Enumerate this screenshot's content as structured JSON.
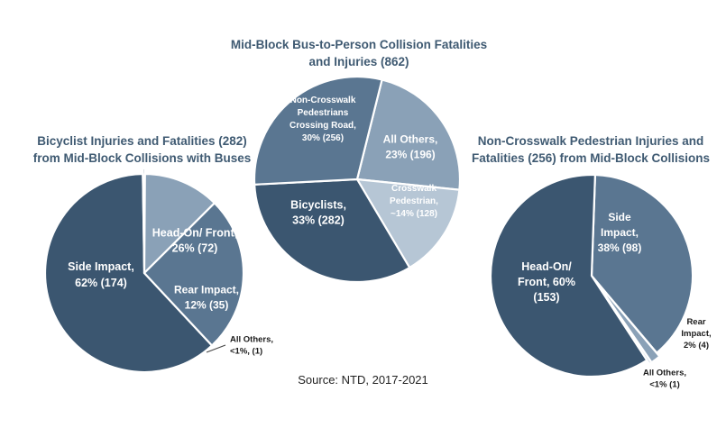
{
  "source": "Source: NTD, 2017-2021",
  "colors": {
    "dark": "#3b5670",
    "mid": "#5a7691",
    "light": "#8aa1b7",
    "lighter": "#b6c6d5",
    "title": "#3f5a72"
  },
  "chart_data": [
    {
      "type": "pie",
      "title_lines": [
        "Bicyclist Injuries and Fatalities (282)",
        "from Mid-Block Collisions with Buses"
      ],
      "slices": [
        {
          "label_lines": [
            "Side Impact,",
            "62% (174)"
          ],
          "value": 174,
          "percent": 62,
          "color": "dark"
        },
        {
          "label_lines": [
            "All Others,",
            "<1%, (1)"
          ],
          "value": 1,
          "percent": 1,
          "color": "dark"
        },
        {
          "label_lines": [
            "Rear Impact,",
            "12% (35)"
          ],
          "value": 35,
          "percent": 12,
          "color": "light"
        },
        {
          "label_lines": [
            "Head-On/ Front,",
            "26% (72)"
          ],
          "value": 72,
          "percent": 26,
          "color": "mid"
        }
      ]
    },
    {
      "type": "pie",
      "title_lines": [
        "Mid-Block Bus-to-Person Collision Fatalities",
        "and Injuries (862)"
      ],
      "slices": [
        {
          "label_lines": [
            "All Others,",
            "23% (196)"
          ],
          "value": 196,
          "percent": 23,
          "color": "light"
        },
        {
          "label_lines": [
            "Crosswalk",
            "Pedestrian,",
            "~14% (128)"
          ],
          "value": 128,
          "percent": 14,
          "color": "lighter"
        },
        {
          "label_lines": [
            "Bicyclists,",
            "33% (282)"
          ],
          "value": 282,
          "percent": 33,
          "color": "dark"
        },
        {
          "label_lines": [
            "Non-Crosswalk",
            "Pedestrians",
            "Crossing Road,",
            "30% (256)"
          ],
          "value": 256,
          "percent": 30,
          "color": "mid"
        }
      ]
    },
    {
      "type": "pie",
      "title_lines": [
        "Non-Crosswalk Pedestrian Injuries and",
        "Fatalities (256) from Mid-Block Collisions"
      ],
      "slices": [
        {
          "label_lines": [
            "Side",
            "Impact,",
            "38% (98)"
          ],
          "value": 98,
          "percent": 38,
          "color": "mid"
        },
        {
          "label_lines": [
            "Rear",
            "Impact,",
            "2% (4)"
          ],
          "value": 4,
          "percent": 2,
          "color": "light"
        },
        {
          "label_lines": [
            "All Others,",
            "<1% (1)"
          ],
          "value": 1,
          "percent": 1,
          "color": "lighter"
        },
        {
          "label_lines": [
            "Head-On/",
            "Front, 60%",
            "(153)"
          ],
          "value": 153,
          "percent": 60,
          "color": "dark"
        }
      ]
    }
  ]
}
